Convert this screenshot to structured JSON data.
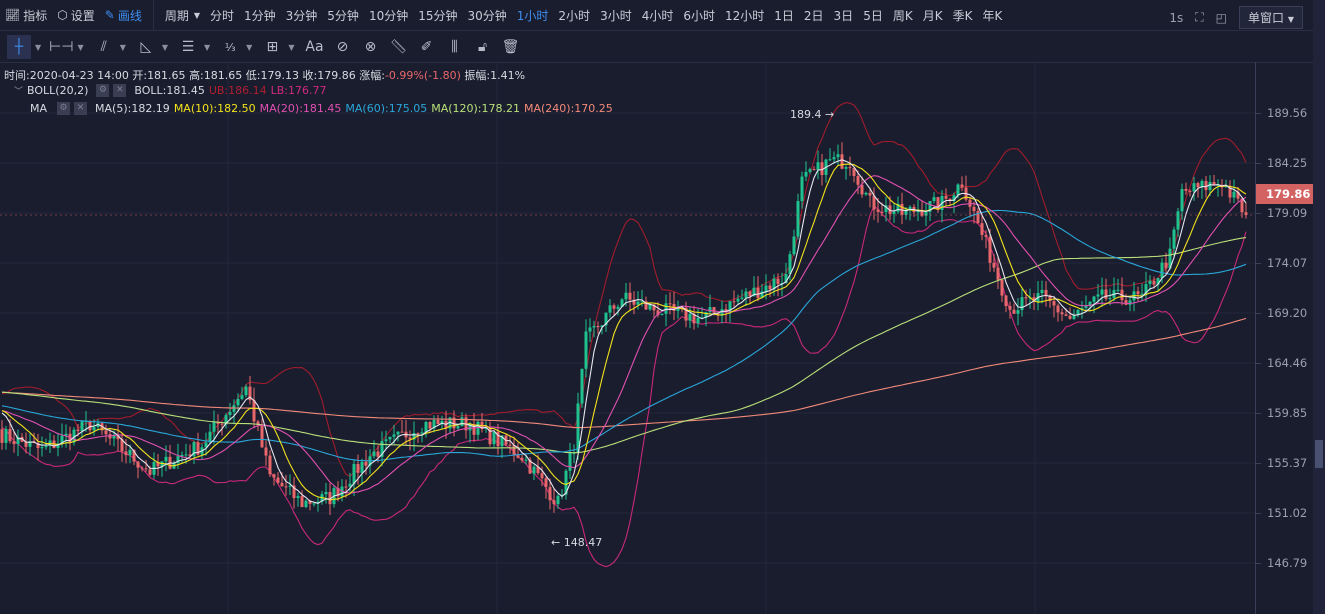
{
  "topbar": {
    "indicators": "指标",
    "settings": "设置",
    "draw": "画线",
    "period": "周期",
    "periods": [
      "分时",
      "1分钟",
      "3分钟",
      "5分钟",
      "10分钟",
      "15分钟",
      "30分钟",
      "1小时",
      "2小时",
      "3小时",
      "4小时",
      "6小时",
      "12小时",
      "1日",
      "2日",
      "3日",
      "5日",
      "周K",
      "月K",
      "季K",
      "年K"
    ],
    "active_period": "1小时",
    "refresh": "1s",
    "window_mode": "单窗口"
  },
  "info": {
    "time_label": "时间:",
    "time": "2020-04-23 14:00",
    "open_label": "开:",
    "open": "181.65",
    "high_label": "高:",
    "high": "181.65",
    "low_label": "低:",
    "low": "179.13",
    "close_label": "收:",
    "close": "179.86",
    "change_label": "涨幅:",
    "change": "-0.99%(-1.80)",
    "amp_label": "振幅:",
    "amp": "1.41%"
  },
  "boll": {
    "name": "BOLL(20,2)",
    "mid": "BOLL:181.45",
    "ub": "UB:186.14",
    "lb": "LB:176.77"
  },
  "ma": {
    "name": "MA",
    "ma5": "MA(5):182.19",
    "ma10": "MA(10):182.50",
    "ma20": "MA(20):181.45",
    "ma60": "MA(60):175.05",
    "ma120": "MA(120):178.21",
    "ma240": "MA(240):170.25"
  },
  "colors": {
    "up": "#1fc28f",
    "down": "#e8676b",
    "ma5": "#e6e6ee",
    "ma10": "#f2e21c",
    "ma20": "#e050b0",
    "ma60": "#2aa6d8",
    "ma120": "#b9e07a",
    "ma240": "#f28a7a",
    "ub": "#a01c2c",
    "lb": "#c8287a",
    "accent": "#3d8ef0"
  },
  "axis": {
    "ticks": [
      "189.56",
      "184.25",
      "179.09",
      "174.07",
      "169.20",
      "164.46",
      "159.85",
      "155.37",
      "151.02",
      "146.79"
    ]
  },
  "last_price": "179.86",
  "annotations": {
    "high": "189.4 →",
    "low": "← 148.47"
  },
  "chart_data": {
    "type": "candlestick",
    "close_anchors": [
      [
        0,
        159
      ],
      [
        10,
        157.5
      ],
      [
        22,
        160
      ],
      [
        37,
        155.5
      ],
      [
        50,
        158
      ],
      [
        61,
        163.5
      ],
      [
        67,
        155
      ],
      [
        75,
        152.5
      ],
      [
        82,
        153
      ],
      [
        92,
        157
      ],
      [
        105,
        160
      ],
      [
        117,
        160
      ],
      [
        130,
        157
      ],
      [
        139,
        152.5
      ],
      [
        143,
        158
      ],
      [
        146,
        168
      ],
      [
        155,
        172
      ],
      [
        162,
        171
      ],
      [
        175,
        170
      ],
      [
        185,
        172
      ],
      [
        196,
        174
      ],
      [
        200,
        183
      ],
      [
        207,
        185
      ],
      [
        212,
        185
      ],
      [
        217,
        181
      ],
      [
        225,
        180
      ],
      [
        235,
        181
      ],
      [
        240,
        183
      ],
      [
        247,
        176
      ],
      [
        252,
        171
      ],
      [
        260,
        172
      ],
      [
        267,
        170
      ],
      [
        275,
        172
      ],
      [
        285,
        172
      ],
      [
        292,
        176
      ],
      [
        295,
        182
      ],
      [
        305,
        183
      ],
      [
        311,
        179.86
      ]
    ],
    "high": 189.4,
    "low": 148.47
  }
}
